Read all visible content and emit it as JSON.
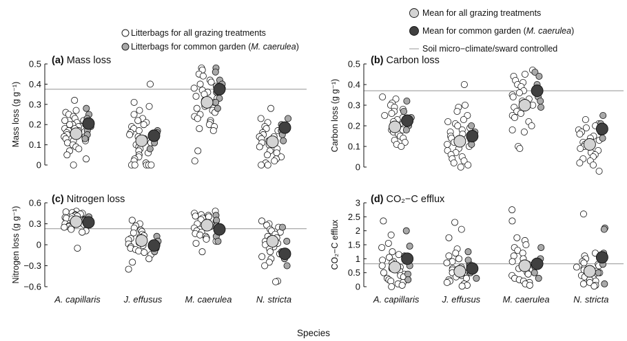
{
  "legend": {
    "left": [
      {
        "label": "Litterbags for all grazing treatments",
        "kind": "open"
      },
      {
        "label": "Litterbags for common garden (",
        "italic": "M. caerulea",
        "suffix": ")",
        "kind": "grey"
      }
    ],
    "right": [
      {
        "label": "Mean for all grazing treatments",
        "kind": "mean-grey"
      },
      {
        "label": "Mean for common garden (",
        "italic": "M. caerulea",
        "suffix": ")",
        "kind": "mean-dark"
      },
      {
        "label": "Soil micro−climate/sward controlled",
        "kind": "line"
      }
    ]
  },
  "xlabel": "Species",
  "species": [
    "A. capillaris",
    "J. effusus",
    "M. caerulea",
    "N. stricta"
  ],
  "colors": {
    "open": "#ffffff",
    "grey": "#a9a9a9",
    "mean_grey": "#d3d3d3",
    "mean_dark": "#404040",
    "control_line": "#a8a8a8",
    "axis": "#111111"
  },
  "chart_data": [
    {
      "panel": "(a)",
      "title": "Mass loss",
      "type": "scatter",
      "ylabel": "Mass loss (g g⁻¹)",
      "ylim": [
        0,
        0.5
      ],
      "yticks": [
        0,
        0.1,
        0.2,
        0.3,
        0.4,
        0.5
      ],
      "ytick_labels": [
        "0",
        "0.1",
        "0.2",
        "0.3",
        "0.4",
        "0.5"
      ],
      "control_line": 0.375,
      "groups": [
        {
          "species": "A. capillaris",
          "mean_all": 0.155,
          "mean_garden": 0.205,
          "all": [
            0.32,
            0.27,
            0.26,
            0.25,
            0.24,
            0.23,
            0.22,
            0.22,
            0.21,
            0.2,
            0.2,
            0.19,
            0.19,
            0.18,
            0.18,
            0.17,
            0.17,
            0.16,
            0.16,
            0.15,
            0.15,
            0.14,
            0.14,
            0.13,
            0.13,
            0.12,
            0.12,
            0.11,
            0.1,
            0.09,
            0.08,
            0.07,
            0.05,
            0.03,
            0.0
          ],
          "garden": [
            0.28,
            0.25,
            0.23,
            0.2,
            0.19,
            0.17,
            0.15,
            0.13
          ]
        },
        {
          "species": "J. effusus",
          "mean_all": 0.12,
          "mean_garden": 0.145,
          "all": [
            0.4,
            0.31,
            0.29,
            0.27,
            0.25,
            0.23,
            0.22,
            0.21,
            0.2,
            0.19,
            0.18,
            0.17,
            0.16,
            0.15,
            0.14,
            0.13,
            0.12,
            0.11,
            0.1,
            0.09,
            0.08,
            0.07,
            0.06,
            0.05,
            0.04,
            0.03,
            0.02,
            0.01,
            0.0,
            0.0,
            0.0,
            0.0,
            0.0
          ],
          "garden": [
            0.17,
            0.16,
            0.15,
            0.13,
            0.11,
            0.08
          ]
        },
        {
          "species": "M. caerulea",
          "mean_all": 0.31,
          "mean_garden": 0.375,
          "all": [
            0.48,
            0.47,
            0.45,
            0.44,
            0.42,
            0.41,
            0.4,
            0.39,
            0.38,
            0.37,
            0.36,
            0.35,
            0.34,
            0.33,
            0.32,
            0.31,
            0.3,
            0.29,
            0.28,
            0.27,
            0.26,
            0.25,
            0.24,
            0.23,
            0.22,
            0.21,
            0.2,
            0.19,
            0.18,
            0.17,
            0.07,
            0.02
          ],
          "garden": [
            0.48,
            0.46,
            0.42,
            0.4,
            0.38,
            0.36,
            0.33,
            0.31,
            0.28
          ]
        },
        {
          "species": "N. stricta",
          "mean_all": 0.115,
          "mean_garden": 0.185,
          "all": [
            0.28,
            0.23,
            0.21,
            0.19,
            0.18,
            0.17,
            0.16,
            0.15,
            0.14,
            0.14,
            0.13,
            0.12,
            0.11,
            0.1,
            0.1,
            0.09,
            0.08,
            0.07,
            0.06,
            0.05,
            0.04,
            0.03,
            0.02,
            0.01,
            0.0,
            0.0
          ],
          "garden": [
            0.23,
            0.2,
            0.17,
            0.15,
            0.12
          ]
        }
      ]
    },
    {
      "panel": "(b)",
      "title": "Carbon loss",
      "type": "scatter",
      "ylabel": "Carbon loss (g g⁻¹)",
      "ylim": [
        0,
        0.5
      ],
      "yticks": [
        0,
        0.1,
        0.2,
        0.3,
        0.4,
        0.5
      ],
      "ytick_labels": [
        "0",
        "0.1",
        "0.2",
        "0.3",
        "0.4",
        "0.5"
      ],
      "control_line": 0.37,
      "groups": [
        {
          "species": "A. capillaris",
          "mean_all": 0.195,
          "mean_garden": 0.225,
          "all": [
            0.34,
            0.33,
            0.31,
            0.3,
            0.29,
            0.28,
            0.27,
            0.26,
            0.25,
            0.24,
            0.23,
            0.22,
            0.21,
            0.2,
            0.2,
            0.19,
            0.18,
            0.18,
            0.17,
            0.16,
            0.15,
            0.14,
            0.13,
            0.12,
            0.11,
            0.1
          ],
          "garden": [
            0.32,
            0.27,
            0.24,
            0.22,
            0.2,
            0.18
          ]
        },
        {
          "species": "J. effusus",
          "mean_all": 0.125,
          "mean_garden": 0.15,
          "all": [
            0.4,
            0.3,
            0.29,
            0.27,
            0.25,
            0.23,
            0.22,
            0.21,
            0.2,
            0.19,
            0.18,
            0.17,
            0.16,
            0.15,
            0.14,
            0.13,
            0.12,
            0.11,
            0.1,
            0.09,
            0.08,
            0.07,
            0.06,
            0.05,
            0.04,
            0.03,
            0.02,
            0.01,
            0.0
          ],
          "garden": [
            0.2,
            0.17,
            0.15,
            0.13,
            0.11
          ]
        },
        {
          "species": "M. caerulea",
          "mean_all": 0.3,
          "mean_garden": 0.37,
          "all": [
            0.47,
            0.45,
            0.44,
            0.42,
            0.41,
            0.4,
            0.39,
            0.37,
            0.36,
            0.35,
            0.34,
            0.33,
            0.32,
            0.31,
            0.3,
            0.29,
            0.28,
            0.27,
            0.26,
            0.25,
            0.24,
            0.22,
            0.2,
            0.18,
            0.17,
            0.1,
            0.09
          ],
          "garden": [
            0.46,
            0.44,
            0.4,
            0.37,
            0.34,
            0.32,
            0.29
          ]
        },
        {
          "species": "N. stricta",
          "mean_all": 0.11,
          "mean_garden": 0.185,
          "all": [
            0.23,
            0.21,
            0.2,
            0.19,
            0.18,
            0.17,
            0.16,
            0.15,
            0.14,
            0.13,
            0.12,
            0.11,
            0.1,
            0.09,
            0.08,
            0.07,
            0.06,
            0.05,
            0.04,
            0.03,
            0.02,
            0.01,
            -0.02
          ],
          "garden": [
            0.25,
            0.21,
            0.17,
            0.14
          ]
        }
      ]
    },
    {
      "panel": "(c)",
      "title": "Nitrogen loss",
      "type": "scatter",
      "ylabel": "Nitrogen loss (g g⁻¹)",
      "ylim": [
        -0.6,
        0.6
      ],
      "yticks": [
        -0.6,
        -0.3,
        0,
        0.3,
        0.6
      ],
      "ytick_labels": [
        "−0.6",
        "−0.3",
        "0",
        "0.3",
        "0.6"
      ],
      "control_line": 0.23,
      "groups": [
        {
          "species": "A. capillaris",
          "mean_all": 0.33,
          "mean_garden": 0.32,
          "all": [
            0.48,
            0.47,
            0.46,
            0.45,
            0.44,
            0.43,
            0.42,
            0.41,
            0.4,
            0.39,
            0.38,
            0.37,
            0.36,
            0.35,
            0.34,
            0.33,
            0.32,
            0.31,
            0.3,
            0.29,
            0.28,
            0.27,
            0.26,
            0.25,
            0.24,
            0.22,
            0.2,
            0.18,
            -0.05
          ],
          "garden": [
            0.4,
            0.35,
            0.31
          ]
        },
        {
          "species": "J. effusus",
          "mean_all": 0.06,
          "mean_garden": -0.01,
          "all": [
            0.35,
            0.3,
            0.27,
            0.24,
            0.21,
            0.19,
            0.17,
            0.15,
            0.13,
            0.11,
            0.09,
            0.07,
            0.05,
            0.03,
            0.01,
            -0.01,
            -0.03,
            -0.05,
            -0.07,
            -0.09,
            -0.11,
            -0.14,
            -0.2,
            -0.25,
            -0.35
          ],
          "garden": [
            0.12,
            0.05,
            0.0,
            -0.05,
            -0.1
          ]
        },
        {
          "species": "M. caerulea",
          "mean_all": 0.28,
          "mean_garden": 0.22,
          "all": [
            0.48,
            0.45,
            0.43,
            0.42,
            0.41,
            0.4,
            0.38,
            0.36,
            0.34,
            0.32,
            0.3,
            0.28,
            0.26,
            0.24,
            0.22,
            0.2,
            0.18,
            0.16,
            0.14,
            0.12,
            0.1,
            0.08,
            0.05,
            0.02,
            -0.1
          ],
          "garden": [
            0.42,
            0.35,
            0.27,
            0.2,
            0.12,
            0.05
          ]
        },
        {
          "species": "N. stricta",
          "mean_all": 0.05,
          "mean_garden": -0.13,
          "all": [
            0.34,
            0.3,
            0.28,
            0.25,
            0.22,
            0.2,
            0.18,
            0.15,
            0.12,
            0.1,
            0.08,
            0.05,
            0.02,
            0.0,
            -0.03,
            -0.06,
            -0.1,
            -0.13,
            -0.17,
            -0.2,
            -0.25,
            -0.3,
            -0.52,
            -0.53
          ],
          "garden": [
            0.25,
            0.05,
            -0.1,
            -0.2,
            -0.3
          ]
        }
      ]
    },
    {
      "panel": "(d)",
      "title": "CO₂−C efflux",
      "type": "scatter",
      "ylabel": "CO₂−C efflux",
      "ylim": [
        0,
        3
      ],
      "yticks": [
        0,
        0.5,
        1,
        1.5,
        2,
        2.5,
        3
      ],
      "ytick_labels": [
        "0",
        "0.5",
        "1",
        "1.5",
        "2",
        "2.5",
        "3"
      ],
      "control_line": 0.82,
      "groups": [
        {
          "species": "A. capillaris",
          "mean_all": 0.7,
          "mean_garden": 1.0,
          "all": [
            2.35,
            1.85,
            1.55,
            1.4,
            1.25,
            1.15,
            1.05,
            0.95,
            0.9,
            0.85,
            0.8,
            0.75,
            0.7,
            0.65,
            0.6,
            0.55,
            0.5,
            0.45,
            0.4,
            0.35,
            0.3,
            0.25,
            0.2,
            0.15,
            0.1,
            0.05,
            0.0
          ],
          "garden": [
            2.0,
            1.45,
            1.1,
            0.75,
            0.45,
            0.25
          ]
        },
        {
          "species": "J. effusus",
          "mean_all": 0.55,
          "mean_garden": 0.65,
          "all": [
            2.3,
            2.05,
            1.75,
            1.35,
            1.2,
            1.1,
            1.0,
            0.9,
            0.85,
            0.8,
            0.7,
            0.65,
            0.6,
            0.55,
            0.5,
            0.45,
            0.4,
            0.35,
            0.3,
            0.25,
            0.2,
            0.15,
            0.1,
            0.05,
            0.02
          ],
          "garden": [
            1.25,
            0.95,
            0.75,
            0.5,
            0.3
          ]
        },
        {
          "species": "M. caerulea",
          "mean_all": 0.75,
          "mean_garden": 0.82,
          "all": [
            2.75,
            2.35,
            1.75,
            1.65,
            1.5,
            1.4,
            1.3,
            1.2,
            1.1,
            1.0,
            0.9,
            0.85,
            0.8,
            0.75,
            0.7,
            0.65,
            0.6,
            0.5,
            0.45,
            0.4,
            0.3,
            0.25,
            0.2,
            0.15,
            0.1,
            0.05
          ],
          "garden": [
            1.4,
            1.0,
            0.7,
            0.5,
            0.3
          ]
        },
        {
          "species": "N. stricta",
          "mean_all": 0.55,
          "mean_garden": 1.05,
          "all": [
            2.6,
            1.2,
            1.1,
            1.0,
            0.9,
            0.85,
            0.8,
            0.75,
            0.7,
            0.65,
            0.6,
            0.55,
            0.5,
            0.45,
            0.4,
            0.35,
            0.3,
            0.25,
            0.2,
            0.15,
            0.1,
            0.05,
            0.02
          ],
          "garden": [
            2.1,
            2.05,
            1.2,
            0.8,
            0.5,
            0.1
          ]
        }
      ]
    }
  ]
}
